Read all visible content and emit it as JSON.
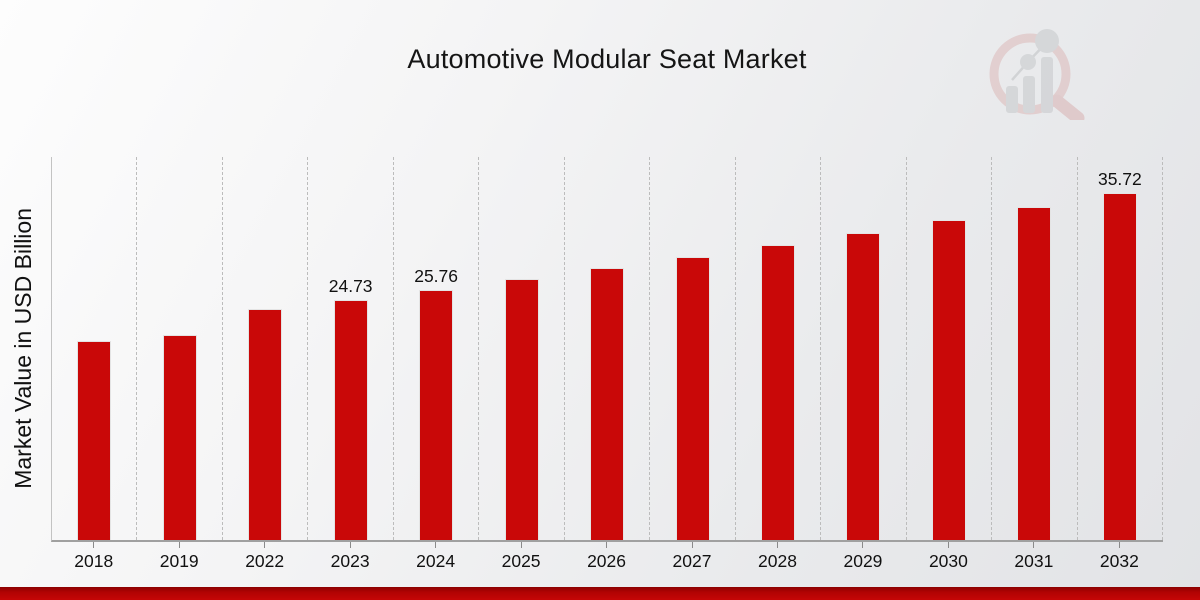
{
  "page": {
    "title": "Automotive Modular Seat Market",
    "y_axis_label": "Market Value in USD Billion",
    "logo": "market-research-future-magnifier-logo",
    "colors": {
      "bar_red": "#c90808",
      "bottom_accent_dark": "#8d0101",
      "bottom_accent_bright": "#c60606",
      "axis_line": "#a0a0a0",
      "gridline": "#bcbcbc",
      "text": "#111111"
    }
  },
  "chart_data": {
    "type": "bar",
    "title": "Automotive Modular Seat Market",
    "xlabel": "",
    "ylabel": "Market Value in USD Billion",
    "categories": [
      "2018",
      "2019",
      "2022",
      "2023",
      "2024",
      "2025",
      "2026",
      "2027",
      "2028",
      "2029",
      "2030",
      "2031",
      "2032"
    ],
    "values": [
      20.5,
      21.04,
      23.74,
      24.73,
      25.76,
      26.83,
      27.95,
      29.11,
      30.32,
      31.58,
      32.9,
      34.27,
      35.72
    ],
    "data_labels": [
      "",
      "",
      "",
      "24.73",
      "25.76",
      "",
      "",
      "",
      "",
      "",
      "",
      "",
      "35.72"
    ],
    "ylim": [
      0,
      39.4
    ],
    "grid": "vertical-dashed",
    "legend": "none",
    "bar_color": "#c90808"
  }
}
